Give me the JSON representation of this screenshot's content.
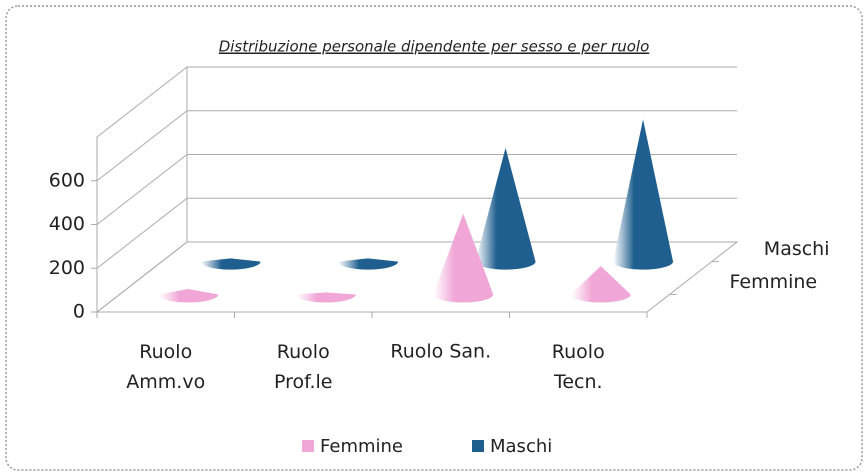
{
  "chart_data": {
    "type": "cone3d",
    "title": "Distribuzione personale dipendente per sesso e per ruolo",
    "categories": [
      "Ruolo Amm.vo",
      "Ruolo Prof.le",
      "Ruolo San.",
      "Ruolo Tecn."
    ],
    "series": [
      {
        "name": "Femmine",
        "color": "#f0a6d6",
        "values": [
          25,
          10,
          370,
          130
        ]
      },
      {
        "name": "Maschi",
        "color": "#1f5f8f",
        "values": [
          15,
          15,
          520,
          650
        ]
      }
    ],
    "ylim": [
      0,
      800
    ],
    "yticks": [
      0,
      200,
      400,
      600
    ],
    "grid": true
  }
}
